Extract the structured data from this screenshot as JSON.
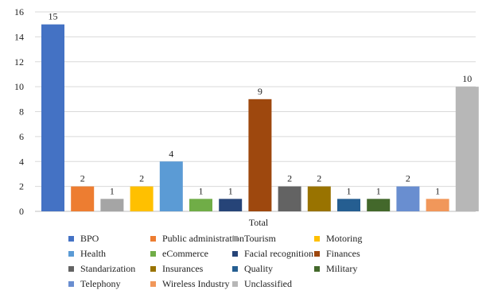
{
  "chart_data": {
    "type": "bar",
    "title": "",
    "xlabel": "Total",
    "ylabel": "",
    "ylim": [
      0,
      16
    ],
    "yticks": [
      0,
      2,
      4,
      6,
      8,
      10,
      12,
      14,
      16
    ],
    "grid": true,
    "legend_position": "bottom",
    "series": [
      {
        "name": "BPO",
        "value": 15,
        "color": "#4472C4"
      },
      {
        "name": "Public administration",
        "value": 2,
        "color": "#ED7D31"
      },
      {
        "name": "Tourism",
        "value": 1,
        "color": "#A5A5A5"
      },
      {
        "name": "Motoring",
        "value": 2,
        "color": "#FFC000"
      },
      {
        "name": "Health",
        "value": 4,
        "color": "#5B9BD5"
      },
      {
        "name": "eCommerce",
        "value": 1,
        "color": "#70AD47"
      },
      {
        "name": "Facial recognition",
        "value": 1,
        "color": "#264478"
      },
      {
        "name": "Finances",
        "value": 9,
        "color": "#9E480E"
      },
      {
        "name": "Standarization",
        "value": 2,
        "color": "#636363"
      },
      {
        "name": "Insurances",
        "value": 2,
        "color": "#997300"
      },
      {
        "name": "Quality",
        "value": 1,
        "color": "#255E91"
      },
      {
        "name": "Military",
        "value": 1,
        "color": "#43682B"
      },
      {
        "name": "Telephony",
        "value": 2,
        "color": "#698ED0"
      },
      {
        "name": "Wireless Industry",
        "value": 1,
        "color": "#F1975A"
      },
      {
        "name": "Unclassified",
        "value": 10,
        "color": "#B7B7B7"
      }
    ]
  }
}
